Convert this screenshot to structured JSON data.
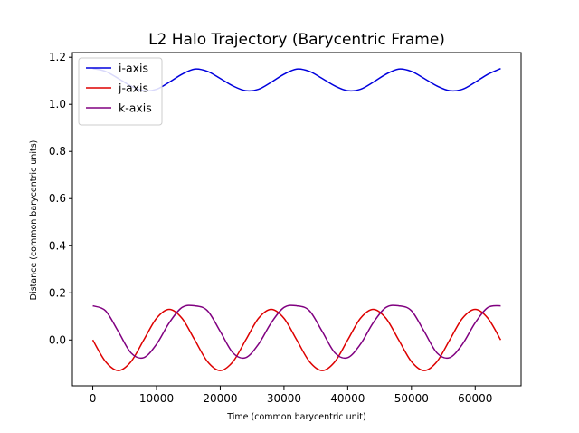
{
  "chart_data": {
    "type": "line",
    "title": "L2 Halo Trajectory (Barycentric Frame)",
    "xlabel": "Time (common barycentric unit)",
    "ylabel": "Distance (common barycentric units)",
    "xlim": [
      -3200,
      67200
    ],
    "ylim": [
      -0.195,
      1.22
    ],
    "x_ticks": [
      0,
      10000,
      20000,
      30000,
      40000,
      50000,
      60000
    ],
    "y_ticks": [
      0.0,
      0.2,
      0.4,
      0.6,
      0.8,
      1.0,
      1.2
    ],
    "x_tick_labels": [
      "0",
      "10000",
      "20000",
      "30000",
      "40000",
      "50000",
      "60000"
    ],
    "y_tick_labels": [
      "0.0",
      "0.2",
      "0.4",
      "0.6",
      "0.8",
      "1.0",
      "1.2"
    ],
    "grid": false,
    "legend_position": "top-left",
    "x": [
      0,
      2000,
      4000,
      6000,
      8000,
      10000,
      12000,
      14000,
      16000,
      18000,
      20000,
      22000,
      24000,
      26000,
      28000,
      30000,
      32000,
      34000,
      36000,
      38000,
      40000,
      42000,
      44000,
      46000,
      48000,
      50000,
      52000,
      54000,
      56000,
      58000,
      60000,
      62000,
      64000
    ],
    "series": [
      {
        "name": "i-axis",
        "color": "#0000dd",
        "values": [
          1.152,
          1.14,
          1.11,
          1.078,
          1.058,
          1.064,
          1.094,
          1.128,
          1.15,
          1.14,
          1.11,
          1.078,
          1.058,
          1.064,
          1.094,
          1.128,
          1.15,
          1.14,
          1.11,
          1.078,
          1.058,
          1.064,
          1.094,
          1.128,
          1.15,
          1.14,
          1.11,
          1.078,
          1.058,
          1.064,
          1.094,
          1.128,
          1.152
        ]
      },
      {
        "name": "j-axis",
        "color": "#dd0000",
        "values": [
          0.0,
          -0.092,
          -0.13,
          -0.092,
          0.0,
          0.092,
          0.13,
          0.092,
          0.0,
          -0.092,
          -0.13,
          -0.092,
          0.0,
          0.092,
          0.13,
          0.092,
          0.0,
          -0.092,
          -0.13,
          -0.092,
          0.0,
          0.092,
          0.13,
          0.092,
          0.0,
          -0.092,
          -0.13,
          -0.092,
          0.0,
          0.092,
          0.13,
          0.092,
          0.0
        ]
      },
      {
        "name": "k-axis",
        "color": "#800080",
        "values": [
          0.145,
          0.124,
          0.036,
          -0.055,
          -0.075,
          -0.018,
          0.073,
          0.138,
          0.145,
          0.124,
          0.036,
          -0.055,
          -0.075,
          -0.018,
          0.073,
          0.138,
          0.145,
          0.124,
          0.036,
          -0.055,
          -0.075,
          -0.018,
          0.073,
          0.138,
          0.145,
          0.124,
          0.036,
          -0.055,
          -0.075,
          -0.018,
          0.073,
          0.138,
          0.145
        ]
      }
    ]
  }
}
